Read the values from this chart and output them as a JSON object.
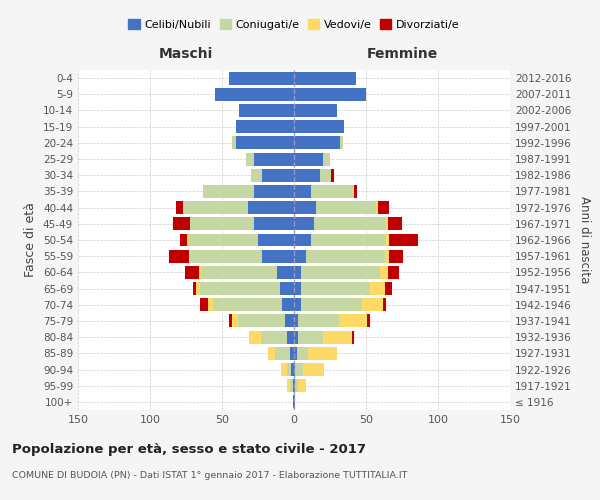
{
  "age_groups": [
    "100+",
    "95-99",
    "90-94",
    "85-89",
    "80-84",
    "75-79",
    "70-74",
    "65-69",
    "60-64",
    "55-59",
    "50-54",
    "45-49",
    "40-44",
    "35-39",
    "30-34",
    "25-29",
    "20-24",
    "15-19",
    "10-14",
    "5-9",
    "0-4"
  ],
  "birth_years": [
    "≤ 1916",
    "1917-1921",
    "1922-1926",
    "1927-1931",
    "1932-1936",
    "1937-1941",
    "1942-1946",
    "1947-1951",
    "1952-1956",
    "1957-1961",
    "1962-1966",
    "1967-1971",
    "1972-1976",
    "1977-1981",
    "1982-1986",
    "1987-1991",
    "1992-1996",
    "1997-2001",
    "2002-2006",
    "2007-2011",
    "2012-2016"
  ],
  "maschi": {
    "celibi": [
      1,
      1,
      2,
      3,
      5,
      6,
      8,
      10,
      12,
      22,
      25,
      28,
      32,
      28,
      22,
      28,
      40,
      40,
      38,
      55,
      45
    ],
    "coniugati": [
      0,
      2,
      3,
      10,
      18,
      33,
      48,
      55,
      52,
      50,
      48,
      44,
      45,
      35,
      8,
      5,
      3,
      0,
      0,
      0,
      0
    ],
    "vedovi": [
      0,
      2,
      4,
      5,
      8,
      4,
      4,
      3,
      2,
      1,
      1,
      0,
      0,
      0,
      0,
      0,
      0,
      0,
      0,
      0,
      0
    ],
    "divorziati": [
      0,
      0,
      0,
      0,
      0,
      2,
      5,
      2,
      10,
      14,
      5,
      12,
      5,
      0,
      0,
      0,
      0,
      0,
      0,
      0,
      0
    ]
  },
  "femmine": {
    "nubili": [
      1,
      1,
      1,
      2,
      3,
      3,
      5,
      5,
      5,
      8,
      12,
      14,
      15,
      12,
      18,
      20,
      32,
      35,
      30,
      50,
      43
    ],
    "coniugate": [
      0,
      2,
      5,
      8,
      17,
      28,
      42,
      48,
      55,
      55,
      52,
      50,
      42,
      30,
      8,
      5,
      2,
      0,
      0,
      0,
      0
    ],
    "vedove": [
      0,
      5,
      15,
      20,
      20,
      20,
      15,
      10,
      5,
      3,
      2,
      1,
      1,
      0,
      0,
      0,
      0,
      0,
      0,
      0,
      0
    ],
    "divorziate": [
      0,
      0,
      0,
      0,
      2,
      2,
      2,
      5,
      8,
      10,
      20,
      10,
      8,
      2,
      2,
      0,
      0,
      0,
      0,
      0,
      0
    ]
  },
  "colors": {
    "celibi": "#4472c4",
    "coniugati": "#c5d8a4",
    "vedovi": "#ffd966",
    "divorziati": "#c00000"
  },
  "xlim": 150,
  "title": "Popolazione per età, sesso e stato civile - 2017",
  "subtitle": "COMUNE DI BUDOIA (PN) - Dati ISTAT 1° gennaio 2017 - Elaborazione TUTTITALIA.IT",
  "ylabel": "Fasce di età",
  "ylabel_right": "Anni di nascita",
  "legend_labels": [
    "Celibi/Nubili",
    "Coniugati/e",
    "Vedovi/e",
    "Divorziati/e"
  ],
  "maschi_label": "Maschi",
  "femmine_label": "Femmine",
  "bg_color": "#f5f5f5",
  "plot_bg_color": "#ffffff",
  "xticks": [
    -150,
    -100,
    -50,
    0,
    50,
    100,
    150
  ]
}
